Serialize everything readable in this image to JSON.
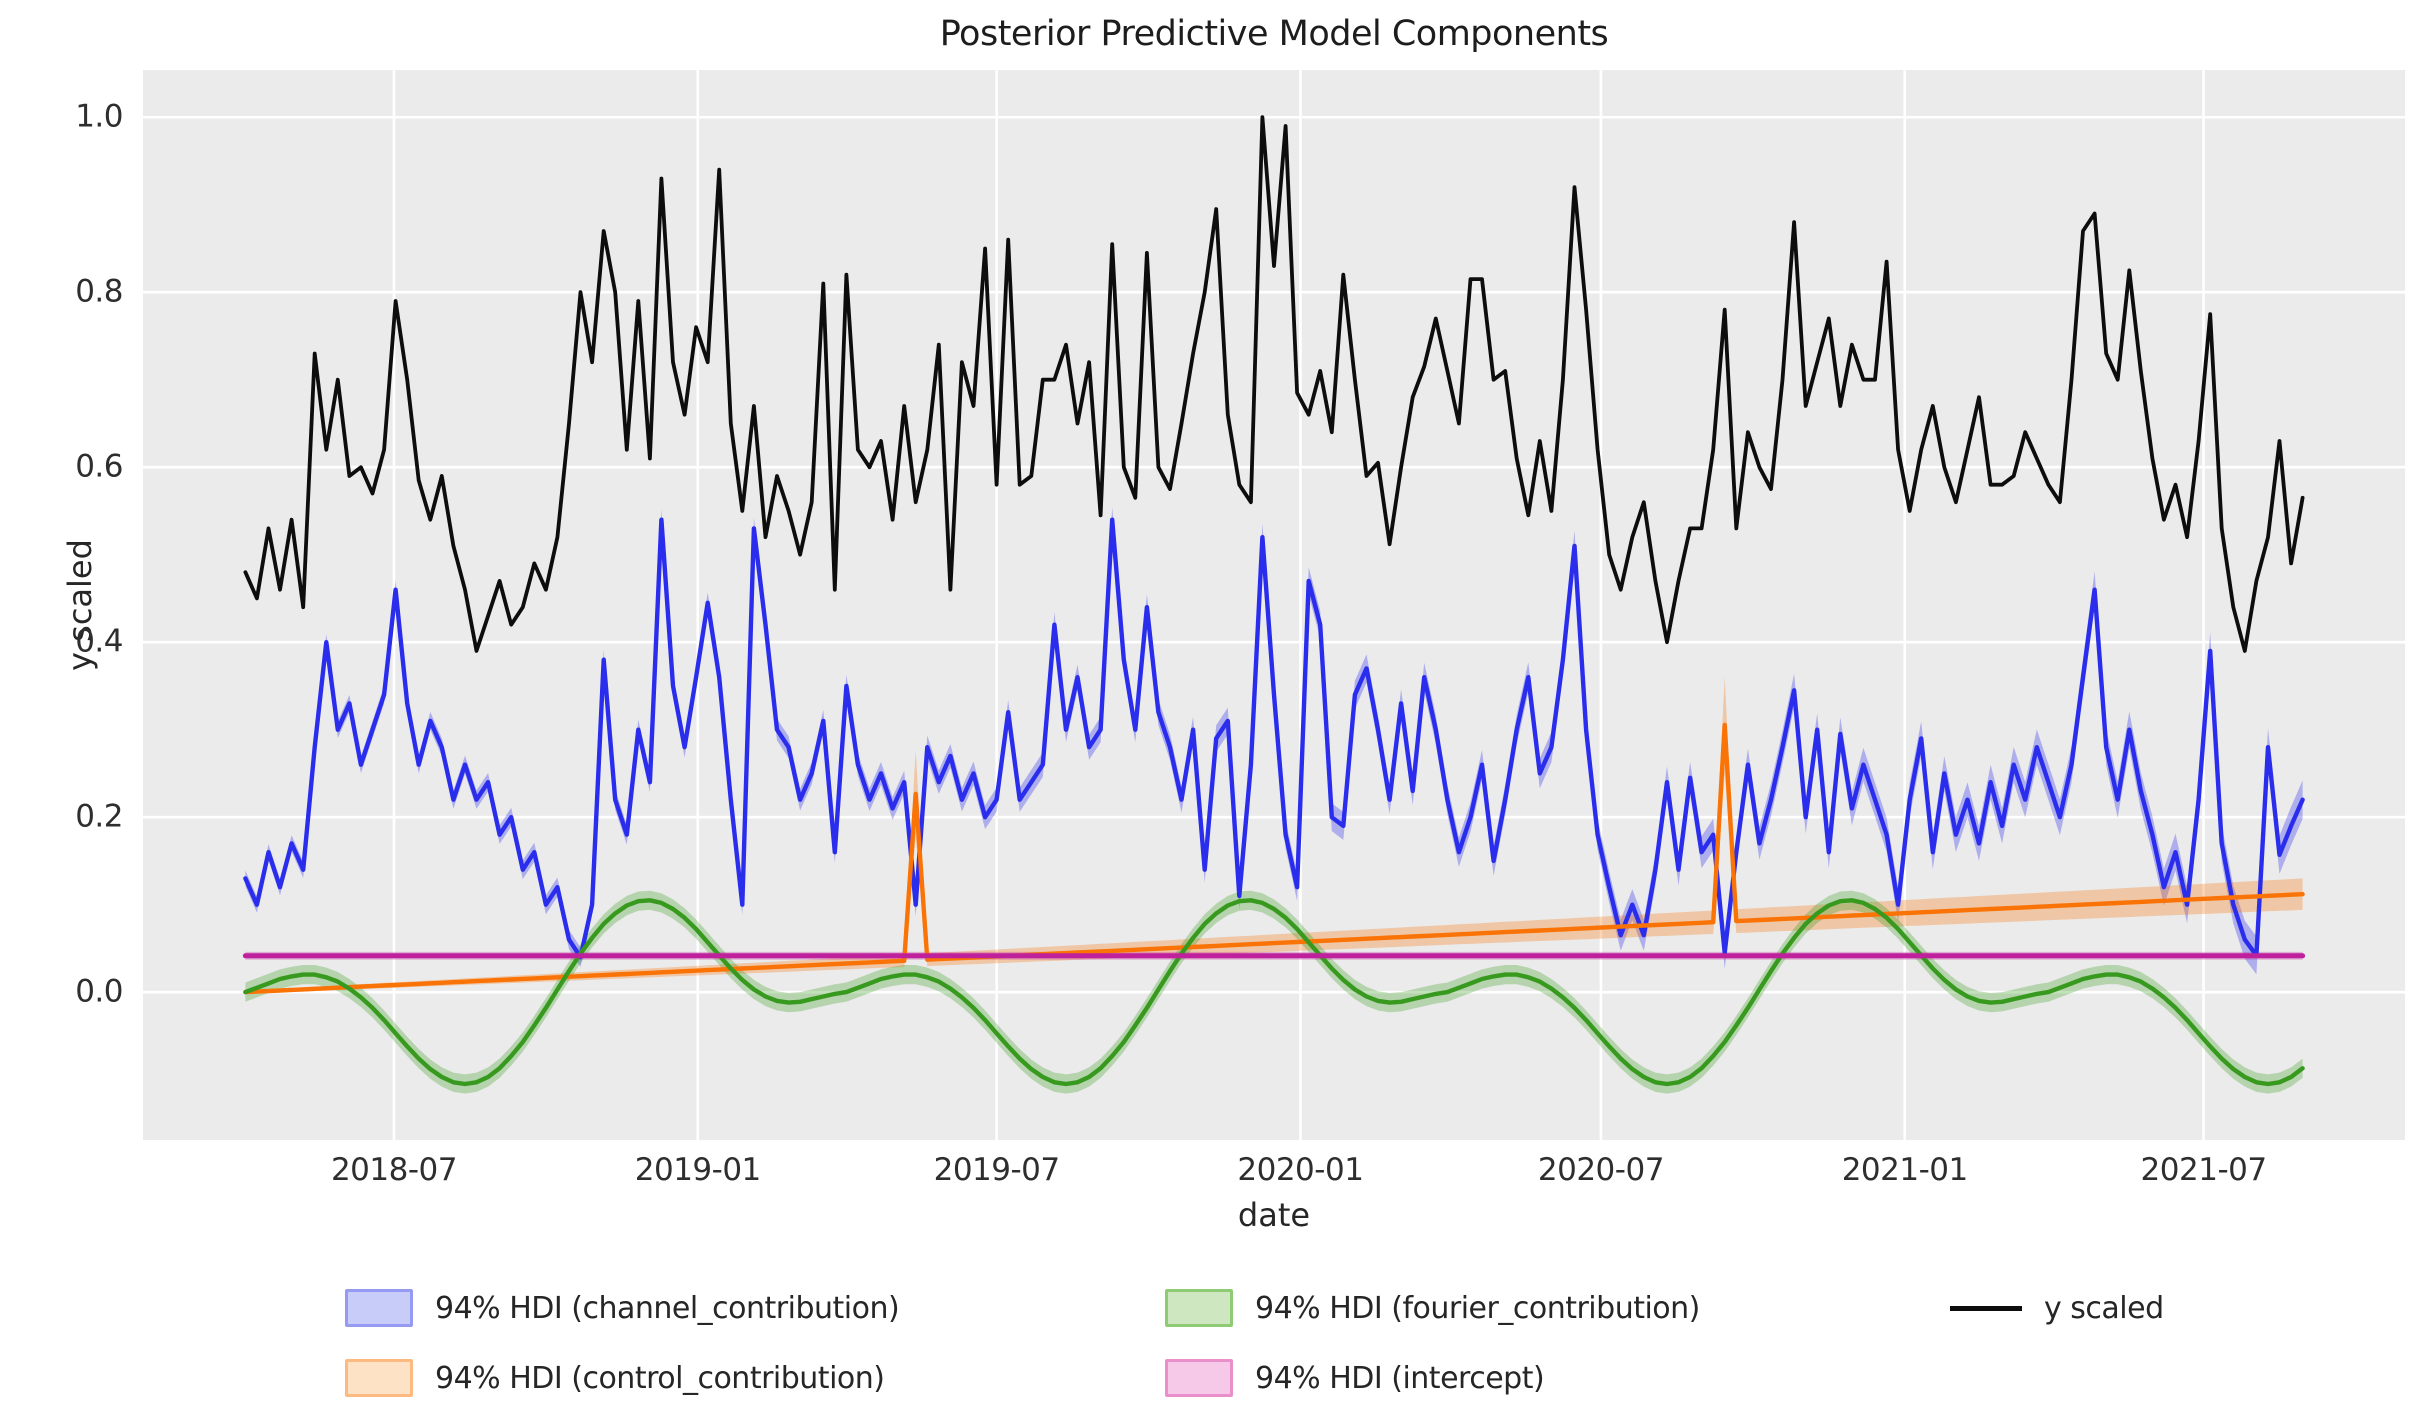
{
  "title": "Posterior Predictive Model Components",
  "style": {
    "plot_bg": "#ebebeb",
    "grid_color": "#ffffff",
    "text_color": "#262626",
    "black_line": "#0d0d0d",
    "channel_line": "#2a2eec",
    "control_line": "#f97306",
    "fourier_line": "#379a1e",
    "intercept_line": "#bf209c",
    "channel_patch_fill": "#c8ccf9",
    "channel_patch_edge": "#959af3",
    "control_patch_fill": "#fde2c6",
    "control_patch_edge": "#fcba80",
    "fourier_patch_fill": "#cfe7c0",
    "fourier_patch_edge": "#8dcb74",
    "intercept_patch_fill": "#f6c9e8",
    "intercept_patch_edge": "#e98fcb"
  },
  "chart_data": {
    "type": "line",
    "title": "Posterior Predictive Model Components",
    "xlabel": "date",
    "ylabel": "y scaled",
    "x_start_date": "2018-04-02",
    "x_step_days": 7,
    "n_points": 179,
    "xlim_days": [
      -62,
      1308
    ],
    "ylim": [
      -0.169,
      1.054
    ],
    "grid": true,
    "legend_position": "below",
    "yticks": [
      {
        "value": 0.0,
        "label": "0.0"
      },
      {
        "value": 0.2,
        "label": "0.2"
      },
      {
        "value": 0.4,
        "label": "0.4"
      },
      {
        "value": 0.6,
        "label": "0.6"
      },
      {
        "value": 0.8,
        "label": "0.8"
      },
      {
        "value": 1.0,
        "label": "1.0"
      }
    ],
    "xticks": [
      {
        "days": 90,
        "label": "2018-07"
      },
      {
        "days": 274,
        "label": "2019-01"
      },
      {
        "days": 455,
        "label": "2019-07"
      },
      {
        "days": 639,
        "label": "2020-01"
      },
      {
        "days": 821,
        "label": "2020-07"
      },
      {
        "days": 1005,
        "label": "2021-01"
      },
      {
        "days": 1186,
        "label": "2021-07"
      }
    ],
    "series": [
      {
        "id": "channel_contribution",
        "kind": "band_line",
        "color": "#2a2eec",
        "band_alpha": 0.32,
        "band_halfwidth_start": 0.009,
        "band_halfwidth_end": 0.022,
        "values": [
          0.13,
          0.1,
          0.16,
          0.12,
          0.17,
          0.14,
          0.28,
          0.4,
          0.3,
          0.33,
          0.26,
          0.3,
          0.34,
          0.46,
          0.33,
          0.26,
          0.31,
          0.28,
          0.22,
          0.26,
          0.22,
          0.24,
          0.18,
          0.2,
          0.14,
          0.16,
          0.1,
          0.12,
          0.06,
          0.04,
          0.1,
          0.38,
          0.22,
          0.18,
          0.3,
          0.24,
          0.54,
          0.35,
          0.28,
          0.36,
          0.445,
          0.36,
          0.22,
          0.1,
          0.53,
          0.42,
          0.3,
          0.28,
          0.22,
          0.25,
          0.31,
          0.16,
          0.35,
          0.26,
          0.22,
          0.25,
          0.21,
          0.24,
          0.1,
          0.28,
          0.24,
          0.27,
          0.22,
          0.25,
          0.2,
          0.22,
          0.32,
          0.22,
          0.24,
          0.26,
          0.42,
          0.3,
          0.36,
          0.28,
          0.3,
          0.54,
          0.38,
          0.3,
          0.44,
          0.32,
          0.28,
          0.22,
          0.3,
          0.14,
          0.29,
          0.31,
          0.11,
          0.26,
          0.52,
          0.34,
          0.18,
          0.12,
          0.47,
          0.42,
          0.2,
          0.19,
          0.34,
          0.37,
          0.3,
          0.22,
          0.33,
          0.23,
          0.36,
          0.3,
          0.22,
          0.16,
          0.2,
          0.26,
          0.15,
          0.22,
          0.3,
          0.36,
          0.25,
          0.28,
          0.38,
          0.51,
          0.3,
          0.18,
          0.12,
          0.065,
          0.1,
          0.065,
          0.14,
          0.24,
          0.14,
          0.245,
          0.16,
          0.18,
          0.045,
          0.16,
          0.26,
          0.17,
          0.22,
          0.28,
          0.345,
          0.2,
          0.3,
          0.16,
          0.295,
          0.21,
          0.26,
          0.22,
          0.18,
          0.1,
          0.22,
          0.29,
          0.16,
          0.25,
          0.18,
          0.22,
          0.17,
          0.24,
          0.19,
          0.26,
          0.22,
          0.28,
          0.24,
          0.2,
          0.26,
          0.36,
          0.46,
          0.28,
          0.22,
          0.3,
          0.23,
          0.18,
          0.12,
          0.16,
          0.1,
          0.22,
          0.39,
          0.17,
          0.1,
          0.06,
          0.042,
          0.28,
          0.157,
          0.19,
          0.22
        ]
      },
      {
        "id": "control_contribution",
        "kind": "band_line_constructed",
        "color": "#f97306",
        "band_alpha": 0.3,
        "trend_start": 0.0,
        "trend_end": 0.112,
        "band_halfwidth_start": 0.002,
        "band_halfwidth_end": 0.018,
        "events": [
          {
            "date": "2019-05-13",
            "index": 58,
            "peak_value": 0.2265,
            "band_halfwidth": 0.05
          },
          {
            "date": "2020-09-14",
            "index": 128,
            "peak_value": 0.3055,
            "band_halfwidth": 0.055
          }
        ]
      },
      {
        "id": "fourier_contribution",
        "kind": "band_line_cyclic",
        "color": "#379a1e",
        "band_alpha": 0.3,
        "band_halfwidth": 0.011,
        "period_points": 52,
        "cycle": [
          0.0,
          0.005,
          0.01,
          0.015,
          0.018,
          0.02,
          0.02,
          0.017,
          0.012,
          0.004,
          -0.006,
          -0.018,
          -0.032,
          -0.047,
          -0.062,
          -0.076,
          -0.088,
          -0.097,
          -0.103,
          -0.105,
          -0.103,
          -0.097,
          -0.087,
          -0.073,
          -0.057,
          -0.038,
          -0.018,
          0.003,
          0.024,
          0.044,
          0.062,
          0.078,
          0.09,
          0.099,
          0.104,
          0.105,
          0.102,
          0.095,
          0.085,
          0.072,
          0.057,
          0.042,
          0.027,
          0.014,
          0.003,
          -0.005,
          -0.01,
          -0.012,
          -0.011,
          -0.008,
          -0.005,
          -0.002
        ]
      },
      {
        "id": "intercept",
        "kind": "band_line_constant",
        "color": "#bf209c",
        "band_alpha": 0.3,
        "constant_value": 0.0415,
        "band_halfwidth": 0.0045
      },
      {
        "id": "y scaled",
        "kind": "line",
        "color": "#0d0d0d",
        "values": [
          0.48,
          0.45,
          0.53,
          0.46,
          0.54,
          0.44,
          0.73,
          0.62,
          0.7,
          0.59,
          0.6,
          0.57,
          0.62,
          0.79,
          0.7,
          0.585,
          0.54,
          0.59,
          0.51,
          0.46,
          0.39,
          0.43,
          0.47,
          0.42,
          0.44,
          0.49,
          0.46,
          0.52,
          0.65,
          0.8,
          0.72,
          0.87,
          0.8,
          0.62,
          0.79,
          0.61,
          0.93,
          0.72,
          0.66,
          0.76,
          0.72,
          0.94,
          0.65,
          0.55,
          0.67,
          0.52,
          0.59,
          0.55,
          0.5,
          0.56,
          0.81,
          0.46,
          0.82,
          0.62,
          0.6,
          0.63,
          0.54,
          0.67,
          0.56,
          0.62,
          0.74,
          0.46,
          0.72,
          0.67,
          0.85,
          0.58,
          0.86,
          0.58,
          0.59,
          0.7,
          0.7,
          0.74,
          0.65,
          0.72,
          0.545,
          0.855,
          0.6,
          0.565,
          0.845,
          0.6,
          0.575,
          0.65,
          0.73,
          0.8,
          0.895,
          0.66,
          0.58,
          0.56,
          1.0,
          0.83,
          0.99,
          0.685,
          0.66,
          0.71,
          0.64,
          0.82,
          0.7,
          0.59,
          0.605,
          0.512,
          0.6,
          0.68,
          0.715,
          0.77,
          0.71,
          0.65,
          0.815,
          0.815,
          0.7,
          0.71,
          0.61,
          0.545,
          0.63,
          0.55,
          0.7,
          0.92,
          0.78,
          0.62,
          0.5,
          0.46,
          0.52,
          0.56,
          0.47,
          0.4,
          0.47,
          0.53,
          0.53,
          0.62,
          0.78,
          0.53,
          0.64,
          0.6,
          0.575,
          0.7,
          0.88,
          0.67,
          0.72,
          0.77,
          0.67,
          0.74,
          0.7,
          0.7,
          0.835,
          0.62,
          0.55,
          0.62,
          0.67,
          0.6,
          0.56,
          0.62,
          0.68,
          0.58,
          0.58,
          0.59,
          0.64,
          0.61,
          0.58,
          0.56,
          0.7,
          0.87,
          0.89,
          0.73,
          0.7,
          0.825,
          0.71,
          0.61,
          0.54,
          0.58,
          0.52,
          0.63,
          0.775,
          0.53,
          0.44,
          0.39,
          0.47,
          0.52,
          0.63,
          0.49,
          0.565
        ]
      }
    ],
    "legend": [
      {
        "row": 0,
        "col": 0,
        "type": "patch",
        "series": "channel_contribution",
        "label": "94% HDI (channel_contribution)"
      },
      {
        "row": 1,
        "col": 0,
        "type": "patch",
        "series": "control_contribution",
        "label": "94% HDI (control_contribution)"
      },
      {
        "row": 0,
        "col": 1,
        "type": "patch",
        "series": "fourier_contribution",
        "label": "94% HDI (fourier_contribution)"
      },
      {
        "row": 1,
        "col": 1,
        "type": "patch",
        "series": "intercept",
        "label": "94% HDI (intercept)"
      },
      {
        "row": 0,
        "col": 2,
        "type": "line",
        "series": "y scaled",
        "label": "y scaled"
      }
    ]
  }
}
